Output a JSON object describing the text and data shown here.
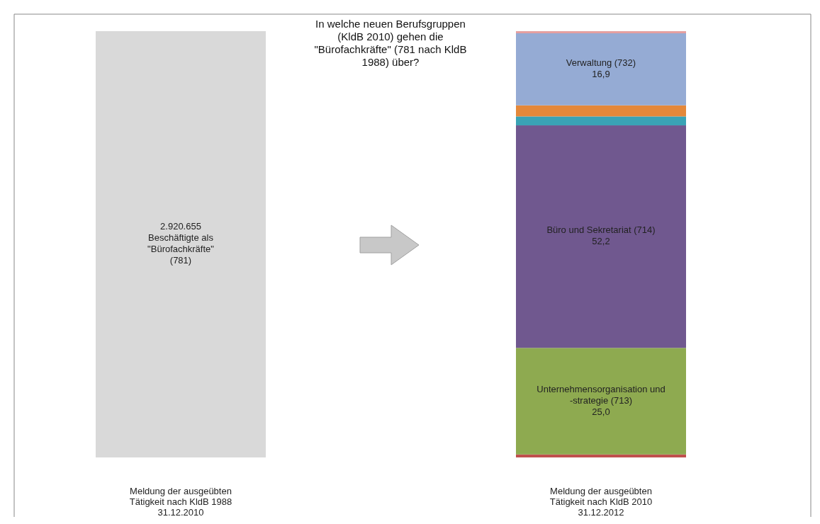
{
  "chart_data": {
    "type": "bar",
    "stacked": true,
    "title": "In welche neuen Berufsgruppen (KldB 2010) gehen die \"Bürofachkräfte\" (781 nach KldB 1988) über?",
    "categories": [
      "Meldung der ausgeübten Tätigkeit nach KldB 1988 31.12.2010",
      "Meldung der ausgeübten Tätigkeit nach KldB 2010 31.12.2012"
    ],
    "ylim": [
      0,
      100
    ],
    "tick_labels": "x",
    "series": [
      {
        "color": "#d9d9d9",
        "values": [
          100,
          null
        ]
      },
      {
        "color": "#c0504d",
        "values": [
          null,
          0.7
        ]
      },
      {
        "name": "Unternehmensorganisation und -strategie (713)",
        "color": "#8eaa50",
        "values": [
          null,
          25.0
        ],
        "value_labels": [
          null,
          "25,0"
        ]
      },
      {
        "name": "Büro und Sekretariat (714)",
        "color": "#70588f",
        "values": [
          null,
          52.2
        ],
        "value_labels": [
          null,
          "52,2"
        ]
      },
      {
        "color": "#3aa3b5",
        "values": [
          null,
          2.1
        ]
      },
      {
        "color": "#e4883a",
        "values": [
          null,
          2.6
        ]
      },
      {
        "name": "Verwaltung (732)",
        "color": "#95abd4",
        "values": [
          null,
          16.9
        ],
        "value_labels": [
          null,
          "16,9"
        ]
      },
      {
        "color": "#e5a0a0",
        "values": [
          null,
          0.5
        ]
      }
    ],
    "annotations": [
      "2.920.655 Beschäftigte als \"Bürofachkräfte\" (781)"
    ]
  }
}
